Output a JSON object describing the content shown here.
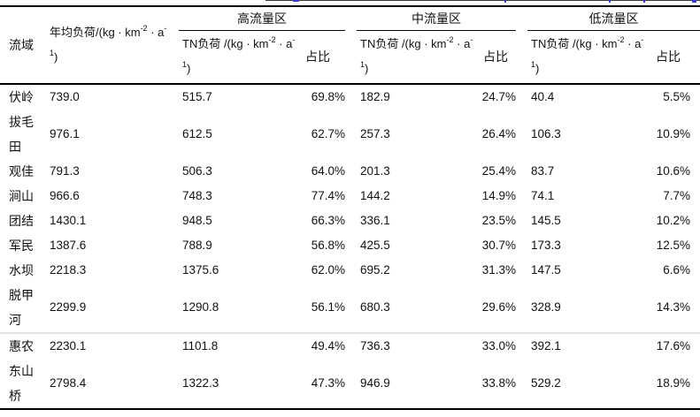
{
  "table": {
    "header": {
      "basin": "流域",
      "annual_load_unit": {
        "l1a": "年均负荷/(kg · km",
        "sup_km": "-2",
        "l1b": " · a",
        "sup_a": "-",
        "sup_one": "1",
        "l2": ")"
      },
      "flow_groups": [
        "高流量区",
        "中流量区",
        "低流量区"
      ],
      "tn_load_unit": {
        "l1a": "TN负荷 /(kg · km",
        "sup_km": "-2",
        "l1b": " · a",
        "sup_a": "-",
        "sup_one": "1",
        "l2": ")"
      },
      "share": "占比"
    },
    "rows": [
      {
        "basin": "伏岭",
        "annual": "739.0",
        "high_tn": "515.7",
        "high_share": "69.8%",
        "mid_tn": "182.9",
        "mid_share": "24.7%",
        "low_tn": "40.4",
        "low_share": "5.5%"
      },
      {
        "basin": "拔毛田",
        "annual": "976.1",
        "high_tn": "612.5",
        "high_share": "62.7%",
        "mid_tn": "257.3",
        "mid_share": "26.4%",
        "low_tn": "106.3",
        "low_share": "10.9%"
      },
      {
        "basin": "观佳",
        "annual": "791.3",
        "high_tn": "506.3",
        "high_share": "64.0%",
        "mid_tn": "201.3",
        "mid_share": "25.4%",
        "low_tn": "83.7",
        "low_share": "10.6%"
      },
      {
        "basin": "涧山",
        "annual": "966.6",
        "high_tn": "748.3",
        "high_share": "77.4%",
        "mid_tn": "144.2",
        "mid_share": "14.9%",
        "low_tn": "74.1",
        "low_share": "7.7%"
      },
      {
        "basin": "团结",
        "annual": "1430.1",
        "high_tn": "948.5",
        "high_share": "66.3%",
        "mid_tn": "336.1",
        "mid_share": "23.5%",
        "low_tn": "145.5",
        "low_share": "10.2%"
      },
      {
        "basin": "军民",
        "annual": "1387.6",
        "high_tn": "788.9",
        "high_share": "56.8%",
        "mid_tn": "425.5",
        "mid_share": "30.7%",
        "low_tn": "173.3",
        "low_share": "12.5%"
      },
      {
        "basin": "水坝",
        "annual": "2218.3",
        "high_tn": "1375.6",
        "high_share": "62.0%",
        "mid_tn": "695.2",
        "mid_share": "31.3%",
        "low_tn": "147.5",
        "low_share": "6.6%"
      },
      {
        "basin": "脱甲河",
        "annual": "2299.9",
        "high_tn": "1290.8",
        "high_share": "56.1%",
        "mid_tn": "680.3",
        "mid_share": "29.6%",
        "low_tn": "328.9",
        "low_share": "14.3%"
      },
      {
        "basin": "惠农",
        "annual": "2230.1",
        "high_tn": "1101.8",
        "high_share": "49.4%",
        "mid_tn": "736.3",
        "mid_share": "33.0%",
        "low_tn": "392.1",
        "low_share": "17.6%",
        "divider_above": true
      },
      {
        "basin": "东山桥",
        "annual": "2798.4",
        "high_tn": "1322.3",
        "high_share": "47.3%",
        "mid_tn": "946.9",
        "mid_share": "33.8%",
        "low_tn": "529.2",
        "low_share": "18.9%"
      }
    ],
    "colors": {
      "border": "#000000",
      "divider": "#e3e3e3",
      "text": "#111111",
      "fragment_blue": "#3b3bd4"
    }
  }
}
